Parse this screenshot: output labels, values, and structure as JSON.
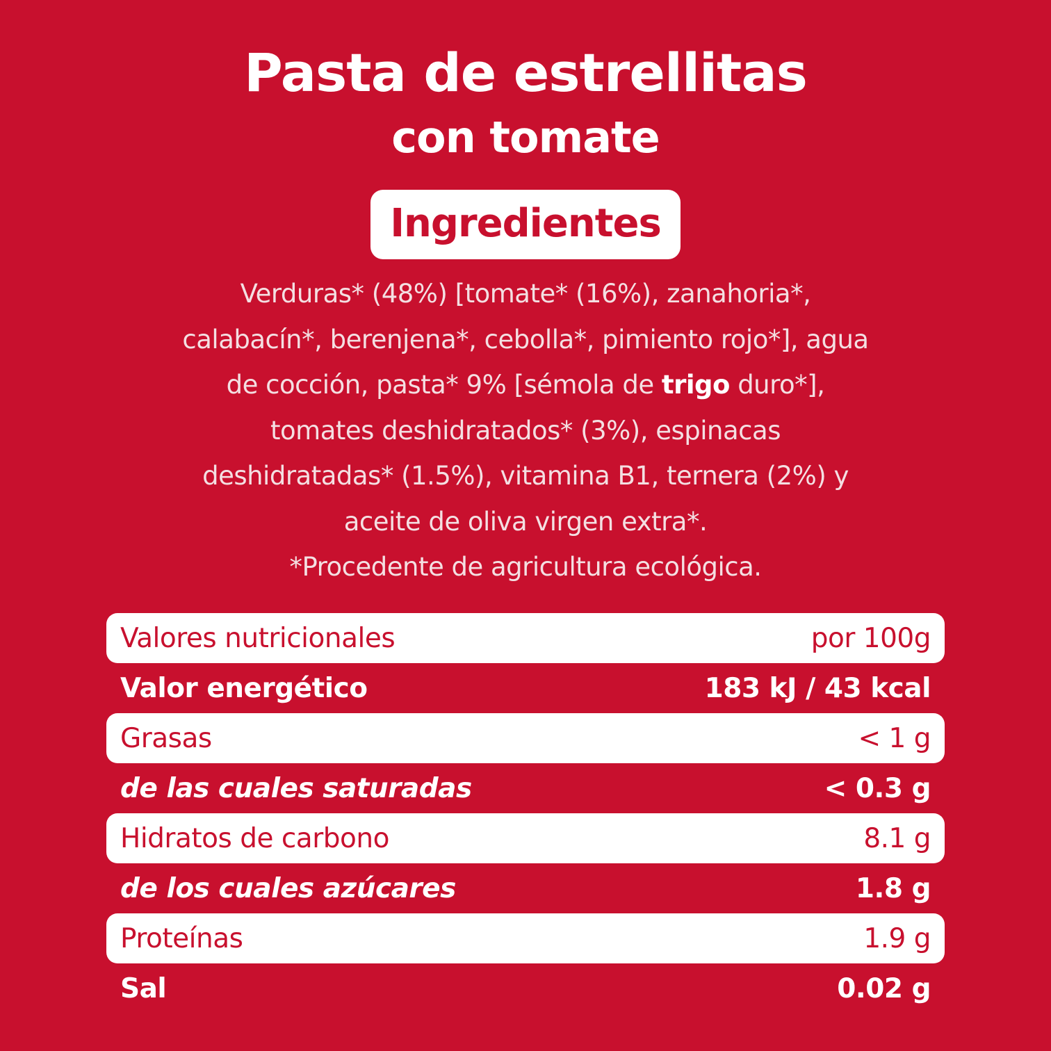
{
  "title": {
    "main": "Pasta de estrellitas",
    "sub": "con tomate"
  },
  "ingredients": {
    "heading": "Ingredientes",
    "lines": [
      {
        "text": "Verduras* (48%) [tomate* (16%), zanahoria*,"
      },
      {
        "text": "calabacín*, berenjena*, cebolla*, pimiento rojo*], agua"
      },
      {
        "pre": "de cocción, pasta* 9% [sémola de ",
        "bold": "trigo",
        "post": " duro*],"
      },
      {
        "text": "tomates deshidratados* (3%), espinacas"
      },
      {
        "text": "deshidratadas* (1.5%), vitamina B1, ternera (2%) y"
      },
      {
        "text": "aceite de oliva virgen extra*."
      },
      {
        "text": "*Procedente de agricultura ecológica."
      }
    ]
  },
  "nutrition": {
    "rows": [
      {
        "label": "Valores nutricionales",
        "value": "por 100g",
        "style": "light"
      },
      {
        "label": "Valor energético",
        "value": "183 kJ / 43 kcal",
        "style": "dark"
      },
      {
        "label": "Grasas",
        "value": "< 1 g",
        "style": "light"
      },
      {
        "label": "de las cuales saturadas",
        "value": "< 0.3 g",
        "style": "dark-italic"
      },
      {
        "label": "Hidratos de carbono",
        "value": "8.1 g",
        "style": "light"
      },
      {
        "label": "de los cuales azúcares",
        "value": "1.8 g",
        "style": "dark-italic"
      },
      {
        "label": "Proteínas",
        "value": "1.9 g",
        "style": "light"
      },
      {
        "label": "Sal",
        "value": "0.02 g",
        "style": "dark"
      }
    ]
  },
  "colors": {
    "background": "#c8102e",
    "text_light": "#ffffff",
    "accent": "#c8102e"
  }
}
